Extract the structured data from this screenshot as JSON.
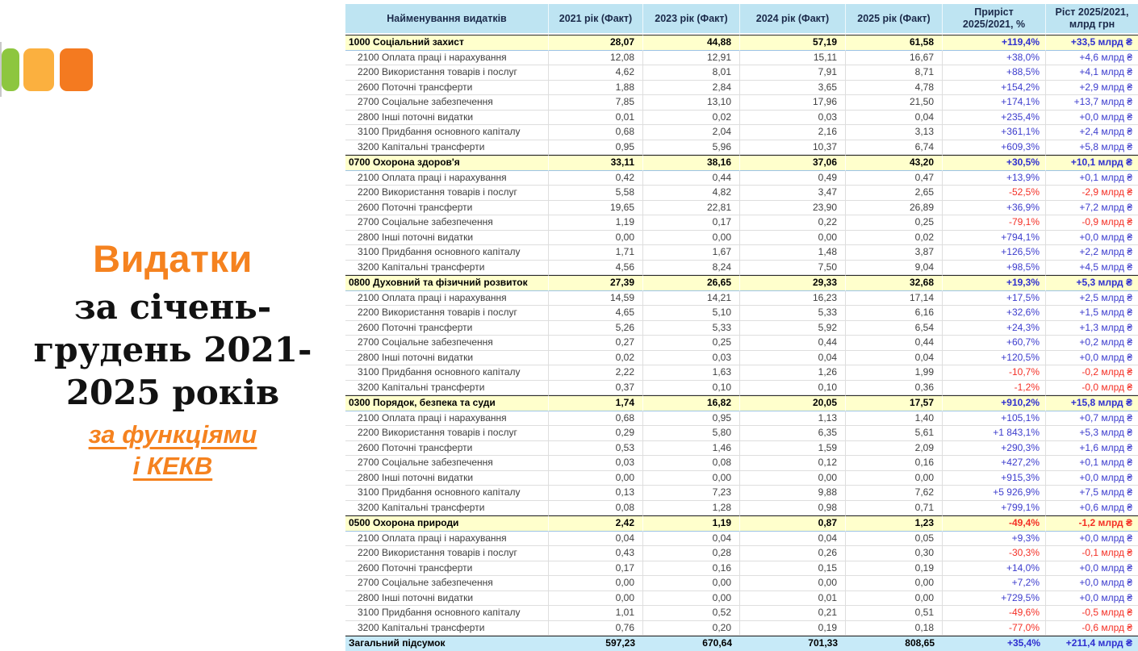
{
  "colors": {
    "accent_orange": "#f5821f",
    "header_bg": "#bee4f2",
    "section_bg": "#ffffcc",
    "total_bg": "#c7eaf8",
    "positive_value": "#3c3ccd",
    "negative_value": "#f42f25",
    "logo_green": "#8dc63f",
    "logo_amber": "#fbb03f",
    "logo_orange": "#f47a20"
  },
  "slide": {
    "title": "Видатки",
    "serif_lines": [
      "за січень-",
      "грудень 2021-",
      "2025 років"
    ],
    "link_lines": [
      "за функціями",
      "і КЕКВ"
    ]
  },
  "table": {
    "columns": [
      "Найменування видатків",
      "2021 рік (Факт)",
      "2023 рік (Факт)",
      "2024 рік (Факт)",
      "2025 рік (Факт)",
      "Приріст\n2025/2021, %",
      "Ріст 2025/2021,\nмлрд грн"
    ],
    "sections": [
      {
        "name": "1000 Соціальний захист",
        "values": [
          "28,07",
          "44,88",
          "57,19",
          "61,58"
        ],
        "growth_pct": "+119,4%",
        "growth_abs": "+33,5 млрд ₴",
        "rows": [
          {
            "name": "2100 Оплата праці і нарахування",
            "values": [
              "12,08",
              "12,91",
              "15,11",
              "16,67"
            ],
            "growth_pct": "+38,0%",
            "growth_abs": "+4,6 млрд ₴"
          },
          {
            "name": "2200 Використання товарів і послуг",
            "values": [
              "4,62",
              "8,01",
              "7,91",
              "8,71"
            ],
            "growth_pct": "+88,5%",
            "growth_abs": "+4,1 млрд ₴"
          },
          {
            "name": "2600 Поточні трансферти",
            "values": [
              "1,88",
              "2,84",
              "3,65",
              "4,78"
            ],
            "growth_pct": "+154,2%",
            "growth_abs": "+2,9 млрд ₴"
          },
          {
            "name": "2700 Соціальне забезпечення",
            "values": [
              "7,85",
              "13,10",
              "17,96",
              "21,50"
            ],
            "growth_pct": "+174,1%",
            "growth_abs": "+13,7 млрд ₴"
          },
          {
            "name": "2800 Інші поточні видатки",
            "values": [
              "0,01",
              "0,02",
              "0,03",
              "0,04"
            ],
            "growth_pct": "+235,4%",
            "growth_abs": "+0,0 млрд ₴"
          },
          {
            "name": "3100 Придбання основного капіталу",
            "values": [
              "0,68",
              "2,04",
              "2,16",
              "3,13"
            ],
            "growth_pct": "+361,1%",
            "growth_abs": "+2,4 млрд ₴"
          },
          {
            "name": "3200 Капітальні трансферти",
            "values": [
              "0,95",
              "5,96",
              "10,37",
              "6,74"
            ],
            "growth_pct": "+609,3%",
            "growth_abs": "+5,8 млрд ₴"
          }
        ]
      },
      {
        "name": "0700 Охорона здоров'я",
        "values": [
          "33,11",
          "38,16",
          "37,06",
          "43,20"
        ],
        "growth_pct": "+30,5%",
        "growth_abs": "+10,1 млрд ₴",
        "rows": [
          {
            "name": "2100 Оплата праці і нарахування",
            "values": [
              "0,42",
              "0,44",
              "0,49",
              "0,47"
            ],
            "growth_pct": "+13,9%",
            "growth_abs": "+0,1 млрд ₴"
          },
          {
            "name": "2200 Використання товарів і послуг",
            "values": [
              "5,58",
              "4,82",
              "3,47",
              "2,65"
            ],
            "growth_pct": "-52,5%",
            "growth_abs": "-2,9 млрд ₴"
          },
          {
            "name": "2600 Поточні трансферти",
            "values": [
              "19,65",
              "22,81",
              "23,90",
              "26,89"
            ],
            "growth_pct": "+36,9%",
            "growth_abs": "+7,2 млрд ₴"
          },
          {
            "name": "2700 Соціальне забезпечення",
            "values": [
              "1,19",
              "0,17",
              "0,22",
              "0,25"
            ],
            "growth_pct": "-79,1%",
            "growth_abs": "-0,9 млрд ₴"
          },
          {
            "name": "2800 Інші поточні видатки",
            "values": [
              "0,00",
              "0,00",
              "0,00",
              "0,02"
            ],
            "growth_pct": "+794,1%",
            "growth_abs": "+0,0 млрд ₴"
          },
          {
            "name": "3100 Придбання основного капіталу",
            "values": [
              "1,71",
              "1,67",
              "1,48",
              "3,87"
            ],
            "growth_pct": "+126,5%",
            "growth_abs": "+2,2 млрд ₴"
          },
          {
            "name": "3200 Капітальні трансферти",
            "values": [
              "4,56",
              "8,24",
              "7,50",
              "9,04"
            ],
            "growth_pct": "+98,5%",
            "growth_abs": "+4,5 млрд ₴"
          }
        ]
      },
      {
        "name": "0800 Духовний та фізичний розвиток",
        "values": [
          "27,39",
          "26,65",
          "29,33",
          "32,68"
        ],
        "growth_pct": "+19,3%",
        "growth_abs": "+5,3 млрд ₴",
        "rows": [
          {
            "name": "2100 Оплата праці і нарахування",
            "values": [
              "14,59",
              "14,21",
              "16,23",
              "17,14"
            ],
            "growth_pct": "+17,5%",
            "growth_abs": "+2,5 млрд ₴"
          },
          {
            "name": "2200 Використання товарів і послуг",
            "values": [
              "4,65",
              "5,10",
              "5,33",
              "6,16"
            ],
            "growth_pct": "+32,6%",
            "growth_abs": "+1,5 млрд ₴"
          },
          {
            "name": "2600 Поточні трансферти",
            "values": [
              "5,26",
              "5,33",
              "5,92",
              "6,54"
            ],
            "growth_pct": "+24,3%",
            "growth_abs": "+1,3 млрд ₴"
          },
          {
            "name": "2700 Соціальне забезпечення",
            "values": [
              "0,27",
              "0,25",
              "0,44",
              "0,44"
            ],
            "growth_pct": "+60,7%",
            "growth_abs": "+0,2 млрд ₴"
          },
          {
            "name": "2800 Інші поточні видатки",
            "values": [
              "0,02",
              "0,03",
              "0,04",
              "0,04"
            ],
            "growth_pct": "+120,5%",
            "growth_abs": "+0,0 млрд ₴"
          },
          {
            "name": "3100 Придбання основного капіталу",
            "values": [
              "2,22",
              "1,63",
              "1,26",
              "1,99"
            ],
            "growth_pct": "-10,7%",
            "growth_abs": "-0,2 млрд ₴"
          },
          {
            "name": "3200 Капітальні трансферти",
            "values": [
              "0,37",
              "0,10",
              "0,10",
              "0,36"
            ],
            "growth_pct": "-1,2%",
            "growth_abs": "-0,0 млрд ₴"
          }
        ]
      },
      {
        "name": "0300 Порядок, безпека та суди",
        "values": [
          "1,74",
          "16,82",
          "20,05",
          "17,57"
        ],
        "growth_pct": "+910,2%",
        "growth_abs": "+15,8 млрд ₴",
        "rows": [
          {
            "name": "2100 Оплата праці і нарахування",
            "values": [
              "0,68",
              "0,95",
              "1,13",
              "1,40"
            ],
            "growth_pct": "+105,1%",
            "growth_abs": "+0,7 млрд ₴"
          },
          {
            "name": "2200 Використання товарів і послуг",
            "values": [
              "0,29",
              "5,80",
              "6,35",
              "5,61"
            ],
            "growth_pct": "+1 843,1%",
            "growth_abs": "+5,3 млрд ₴"
          },
          {
            "name": "2600 Поточні трансферти",
            "values": [
              "0,53",
              "1,46",
              "1,59",
              "2,09"
            ],
            "growth_pct": "+290,3%",
            "growth_abs": "+1,6 млрд ₴"
          },
          {
            "name": "2700 Соціальне забезпечення",
            "values": [
              "0,03",
              "0,08",
              "0,12",
              "0,16"
            ],
            "growth_pct": "+427,2%",
            "growth_abs": "+0,1 млрд ₴"
          },
          {
            "name": "2800 Інші поточні видатки",
            "values": [
              "0,00",
              "0,00",
              "0,00",
              "0,00"
            ],
            "growth_pct": "+915,3%",
            "growth_abs": "+0,0 млрд ₴"
          },
          {
            "name": "3100 Придбання основного капіталу",
            "values": [
              "0,13",
              "7,23",
              "9,88",
              "7,62"
            ],
            "growth_pct": "+5 926,9%",
            "growth_abs": "+7,5 млрд ₴"
          },
          {
            "name": "3200 Капітальні трансферти",
            "values": [
              "0,08",
              "1,28",
              "0,98",
              "0,71"
            ],
            "growth_pct": "+799,1%",
            "growth_abs": "+0,6 млрд ₴"
          }
        ]
      },
      {
        "name": "0500 Охорона природи",
        "values": [
          "2,42",
          "1,19",
          "0,87",
          "1,23"
        ],
        "growth_pct": "-49,4%",
        "growth_abs": "-1,2 млрд ₴",
        "rows": [
          {
            "name": "2100 Оплата праці і нарахування",
            "values": [
              "0,04",
              "0,04",
              "0,04",
              "0,05"
            ],
            "growth_pct": "+9,3%",
            "growth_abs": "+0,0 млрд ₴"
          },
          {
            "name": "2200 Використання товарів і послуг",
            "values": [
              "0,43",
              "0,28",
              "0,26",
              "0,30"
            ],
            "growth_pct": "-30,3%",
            "growth_abs": "-0,1 млрд ₴"
          },
          {
            "name": "2600 Поточні трансферти",
            "values": [
              "0,17",
              "0,16",
              "0,15",
              "0,19"
            ],
            "growth_pct": "+14,0%",
            "growth_abs": "+0,0 млрд ₴"
          },
          {
            "name": "2700 Соціальне забезпечення",
            "values": [
              "0,00",
              "0,00",
              "0,00",
              "0,00"
            ],
            "growth_pct": "+7,2%",
            "growth_abs": "+0,0 млрд ₴"
          },
          {
            "name": "2800 Інші поточні видатки",
            "values": [
              "0,00",
              "0,00",
              "0,01",
              "0,00"
            ],
            "growth_pct": "+729,5%",
            "growth_abs": "+0,0 млрд ₴"
          },
          {
            "name": "3100 Придбання основного капіталу",
            "values": [
              "1,01",
              "0,52",
              "0,21",
              "0,51"
            ],
            "growth_pct": "-49,6%",
            "growth_abs": "-0,5 млрд ₴"
          },
          {
            "name": "3200 Капітальні трансферти",
            "values": [
              "0,76",
              "0,20",
              "0,19",
              "0,18"
            ],
            "growth_pct": "-77,0%",
            "growth_abs": "-0,6 млрд ₴"
          }
        ]
      }
    ],
    "total": {
      "name": "Загальний підсумок",
      "values": [
        "597,23",
        "670,64",
        "701,33",
        "808,65"
      ],
      "growth_pct": "+35,4%",
      "growth_abs": "+211,4 млрд ₴"
    }
  }
}
